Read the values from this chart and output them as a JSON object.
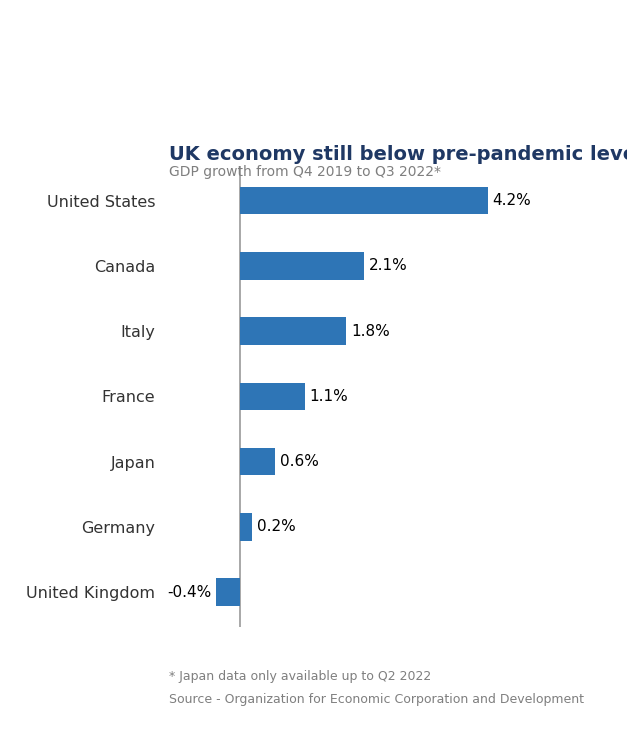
{
  "title": "UK economy still below pre-pandemic levels",
  "subtitle": "GDP growth from Q4 2019 to Q3 2022*",
  "categories": [
    "United States",
    "Canada",
    "Italy",
    "France",
    "Japan",
    "Germany",
    "United Kingdom"
  ],
  "values": [
    4.2,
    2.1,
    1.8,
    1.1,
    0.6,
    0.2,
    -0.4
  ],
  "labels": [
    "4.2%",
    "2.1%",
    "1.8%",
    "1.1%",
    "0.6%",
    "0.2%",
    "-0.4%"
  ],
  "bar_color": "#2e75b6",
  "title_color": "#1f3864",
  "subtitle_color": "#7f7f7f",
  "label_color": "#000000",
  "axis_line_color": "#999999",
  "footnote1": "* Japan data only available up to Q2 2022",
  "footnote2": "Source - Organization for Economic Corporation and Development",
  "footnote_color": "#7f7f7f",
  "xlim": [
    -1.2,
    5.5
  ],
  "bar_height": 0.42,
  "background_color": "#ffffff"
}
